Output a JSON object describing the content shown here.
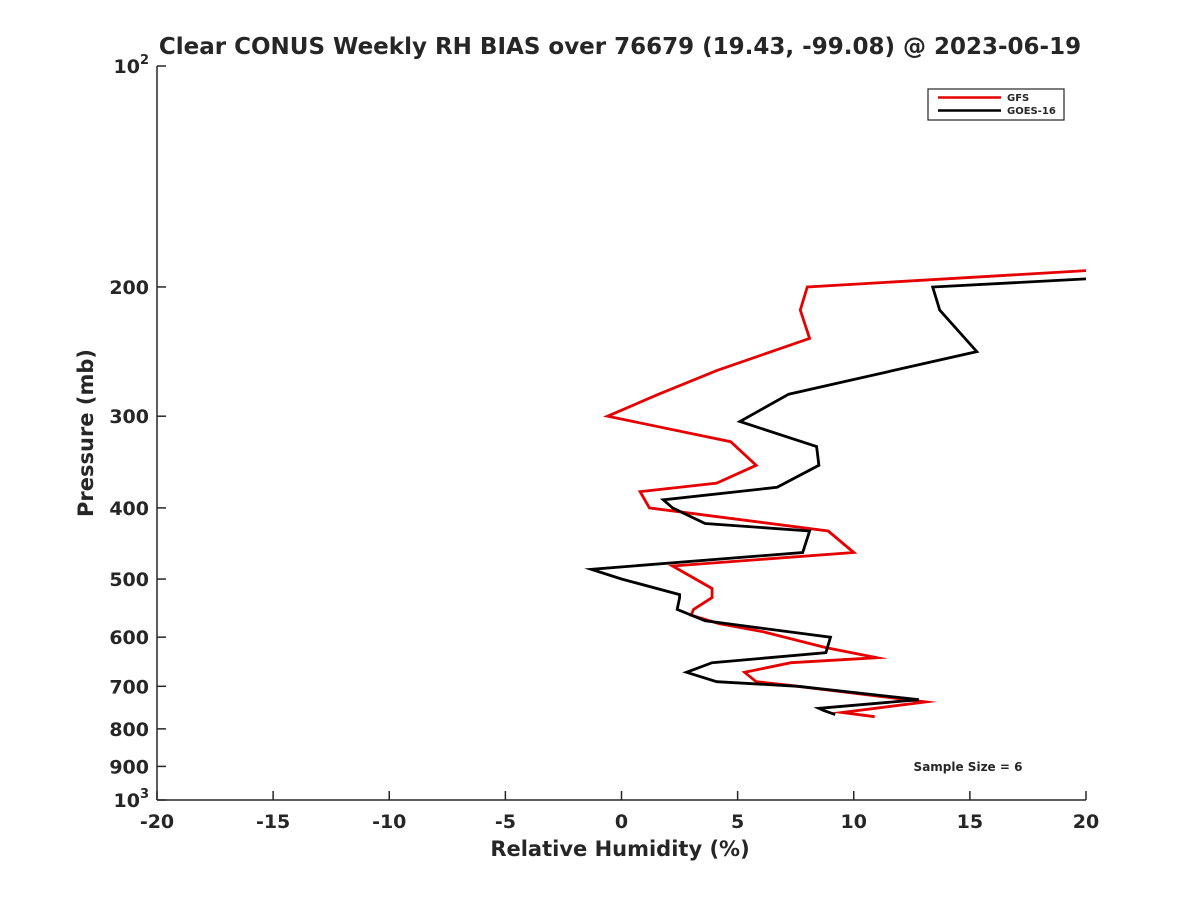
{
  "chart_data": {
    "type": "line",
    "title": "Clear CONUS Weekly RH BIAS over 76679 (19.43, -99.08) @ 2023-06-19",
    "xlabel": "Relative Humidity (%)",
    "ylabel": "Pressure (mb)",
    "xlim": [
      -20,
      20
    ],
    "ylim": [
      100,
      1000
    ],
    "y_scale": "log",
    "y_reversed": true,
    "grid": false,
    "legend_position": "top-right",
    "x_ticks": [
      -20,
      -15,
      -10,
      -5,
      0,
      5,
      10,
      15,
      20
    ],
    "x_tick_labels": [
      "-20",
      "-15",
      "-10",
      "-5",
      "0",
      "5",
      "10",
      "15",
      "20"
    ],
    "y_ticks": [
      100,
      200,
      300,
      400,
      500,
      600,
      700,
      800,
      900,
      1000
    ],
    "y_tick_labels": [
      {
        "base": "10",
        "exp": "2"
      },
      {
        "base": "200"
      },
      {
        "base": "300"
      },
      {
        "base": "400"
      },
      {
        "base": "500"
      },
      {
        "base": "600"
      },
      {
        "base": "700"
      },
      {
        "base": "800"
      },
      {
        "base": "900"
      },
      {
        "base": "10",
        "exp": "3"
      }
    ],
    "annotation": "Sample Size = 6",
    "series": [
      {
        "name": "GFS",
        "color": "#e60000",
        "x": [
          20.0,
          8.0,
          7.7,
          8.1,
          4.1,
          1.6,
          -0.6,
          4.7,
          5.8,
          4.1,
          0.8,
          1.2,
          8.9,
          10.0,
          2.2,
          3.9,
          3.9,
          3.1,
          3.0,
          4.2,
          6.1,
          8.8,
          11.0,
          7.3,
          5.3,
          5.8,
          7.6,
          13.1,
          9.5,
          10.9
        ],
        "y": [
          190,
          200,
          215,
          235,
          260,
          280,
          300,
          325,
          350,
          370,
          380,
          400,
          430,
          460,
          480,
          515,
          530,
          550,
          560,
          575,
          590,
          620,
          640,
          650,
          670,
          690,
          700,
          735,
          760,
          770
        ]
      },
      {
        "name": "GOES-16",
        "color": "#000000",
        "x": [
          20.0,
          13.4,
          13.7,
          15.3,
          7.2,
          5.1,
          8.4,
          8.5,
          6.7,
          1.8,
          2.2,
          3.6,
          8.1,
          7.8,
          -1.3,
          0.0,
          2.5,
          2.5,
          2.4,
          3.6,
          9.0,
          8.8,
          3.9,
          2.8,
          4.1,
          7.6,
          12.8,
          8.5,
          8.7,
          9.2
        ],
        "y": [
          195,
          200,
          215,
          245,
          280,
          305,
          330,
          350,
          375,
          390,
          400,
          420,
          430,
          460,
          485,
          500,
          525,
          530,
          550,
          570,
          600,
          630,
          650,
          670,
          690,
          700,
          730,
          750,
          755,
          765
        ]
      }
    ]
  }
}
